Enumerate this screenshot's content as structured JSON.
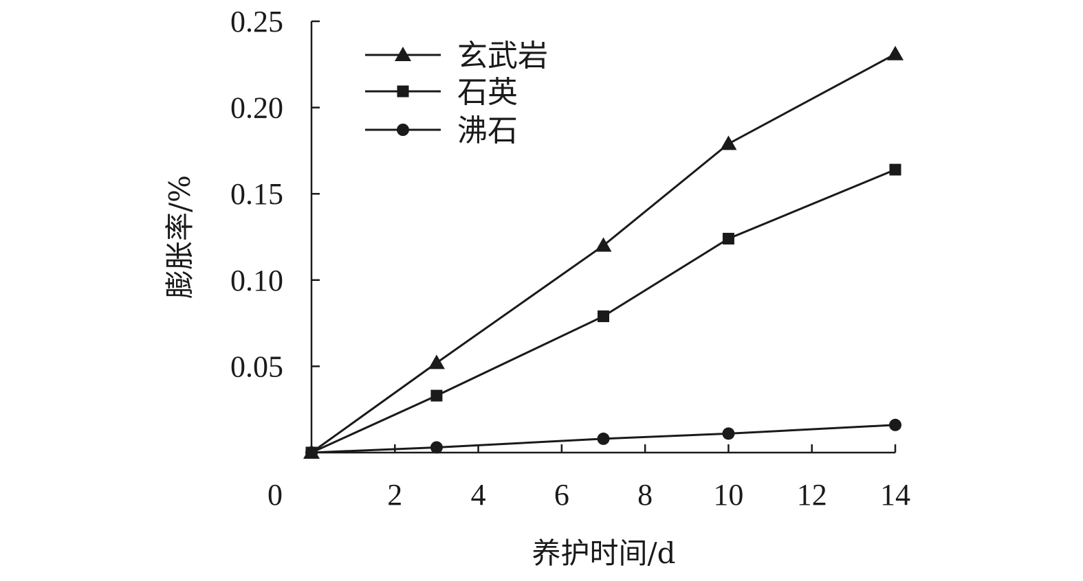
{
  "chart_data": {
    "type": "line",
    "xlabel": "养护时间/d",
    "ylabel": "膨胀率/%",
    "xlim": [
      0,
      14
    ],
    "ylim": [
      0,
      0.25
    ],
    "x_ticks": [
      0,
      2,
      4,
      6,
      8,
      10,
      12,
      14
    ],
    "y_ticks": [
      0.05,
      0.1,
      0.15,
      0.2,
      0.25
    ],
    "y_tick_labels": [
      "0.05",
      "0.10",
      "0.15",
      "0.20",
      "0.25"
    ],
    "x": [
      0,
      3,
      7,
      10,
      14
    ],
    "grid": false,
    "legend_position": "top-left",
    "series": [
      {
        "name": "玄武岩",
        "marker": "triangle",
        "values": [
          0,
          0.052,
          0.12,
          0.179,
          0.231
        ]
      },
      {
        "name": "石英",
        "marker": "square",
        "values": [
          0,
          0.033,
          0.079,
          0.124,
          0.164
        ]
      },
      {
        "name": "沸石",
        "marker": "circle",
        "values": [
          0,
          0.003,
          0.008,
          0.011,
          0.016
        ]
      }
    ],
    "colors": {
      "ink": "#1a1a1a"
    }
  }
}
